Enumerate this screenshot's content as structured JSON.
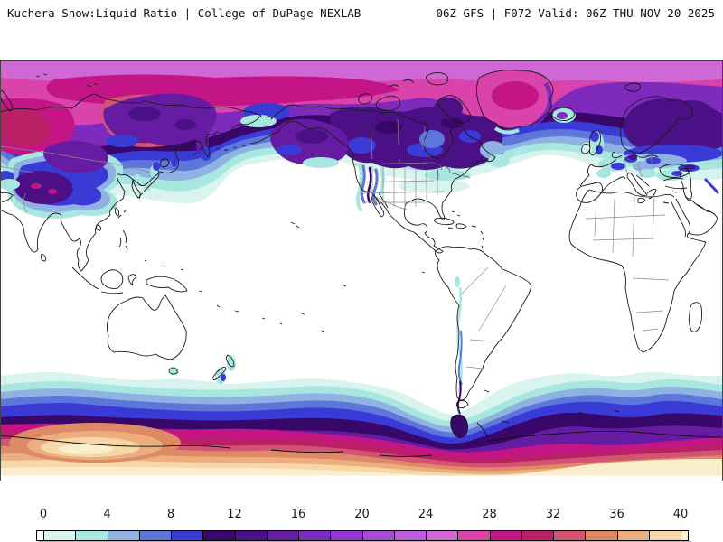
{
  "header": {
    "left_title": "Kuchera Snow:Liquid Ratio | College of DuPage NEXLAB",
    "right_title": "06Z GFS | F072 Valid: 06Z THU NOV 20 2025"
  },
  "colorbar": {
    "tick_labels": [
      "0",
      "4",
      "8",
      "12",
      "16",
      "20",
      "24",
      "28",
      "32",
      "36",
      "40"
    ],
    "tick_values": [
      0,
      4,
      8,
      12,
      16,
      20,
      24,
      28,
      32,
      36,
      40
    ],
    "cell_colors": [
      "#ffffff",
      "#d9f3ef",
      "#a7e7df",
      "#8fb2e3",
      "#5c76d9",
      "#3a3ad6",
      "#38076a",
      "#4c1086",
      "#661ba3",
      "#7e2abc",
      "#9338ce",
      "#a74ad8",
      "#bc5cde",
      "#cf67d4",
      "#d943ab",
      "#c31585",
      "#bb2066",
      "#d15472",
      "#de8a67",
      "#ecae7e",
      "#f6d7a8",
      "#fbeecd"
    ]
  }
}
